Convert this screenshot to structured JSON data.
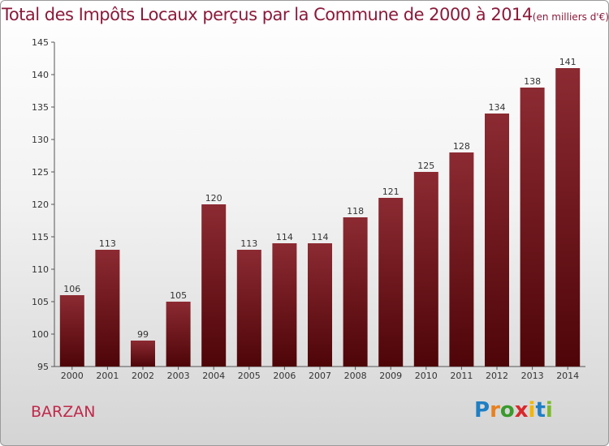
{
  "header": {
    "title": "Total des Impôts Locaux perçus par la Commune de 2000 à 2014",
    "unit": "(en milliers d'€)"
  },
  "footer": {
    "commune": "BARZAN",
    "logo_text": "Proxiti"
  },
  "colors": {
    "bar": "#7a1a22",
    "title": "#8b1a3a",
    "commune": "#c0294a"
  },
  "chart_data": {
    "type": "bar",
    "title": "Total des Impôts Locaux perçus par la Commune de 2000 à 2014",
    "subtitle": "(en milliers d'€)",
    "xlabel": "",
    "ylabel": "",
    "categories": [
      "2000",
      "2001",
      "2002",
      "2003",
      "2004",
      "2005",
      "2006",
      "2007",
      "2008",
      "2009",
      "2010",
      "2011",
      "2012",
      "2013",
      "2014"
    ],
    "values": [
      106,
      113,
      99,
      105,
      120,
      113,
      114,
      114,
      118,
      121,
      125,
      128,
      134,
      138,
      141
    ],
    "ylim": [
      95,
      145
    ],
    "yticks": [
      95,
      100,
      105,
      110,
      115,
      120,
      125,
      130,
      135,
      140,
      145
    ],
    "grid": false,
    "legend": "none"
  }
}
